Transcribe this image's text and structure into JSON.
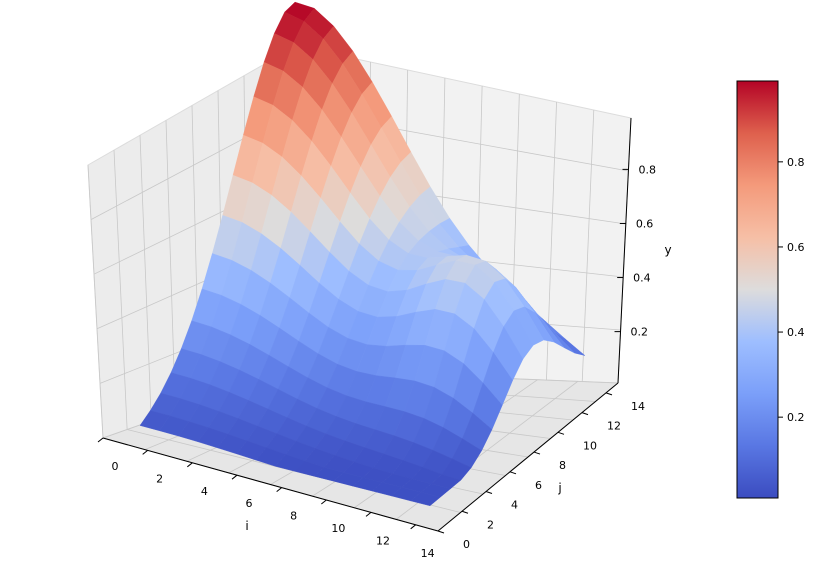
{
  "chart_data": {
    "type": "surface",
    "title": "",
    "xlabel": "i",
    "ylabel": "j",
    "zlabel": "y",
    "xlim": [
      0,
      15
    ],
    "ylim": [
      0,
      15
    ],
    "zlim": [
      0.01,
      0.99
    ],
    "x_ticks": [
      "0",
      "2",
      "4",
      "6",
      "8",
      "10",
      "12",
      "14"
    ],
    "y_ticks": [
      "0",
      "2",
      "4",
      "6",
      "8",
      "10",
      "12",
      "14"
    ],
    "z_ticks": [
      "0.2",
      "0.4",
      "0.6",
      "0.8"
    ],
    "grid": true,
    "colormap": "coolwarm",
    "colorbar": {
      "ticks": [
        "0.2",
        "0.4",
        "0.6",
        "0.8"
      ],
      "range": [
        0.01,
        0.99
      ],
      "placement": "right"
    },
    "grid_size": 16,
    "peak": {
      "i": 0,
      "j": 15,
      "value": 0.99
    },
    "values_description_function": "y = exp(-((i)^2 + (j-15)^2)/70) , low plane ~0.02 near i=15,j=0"
  },
  "colors": {
    "cmap_low": "#3b4cc0",
    "cmap_mid": "#dddddd",
    "cmap_high": "#b40426",
    "pane": "#f2f2f2",
    "pane_dark": "#e8e8e8",
    "grid": "#c8c8c8"
  }
}
